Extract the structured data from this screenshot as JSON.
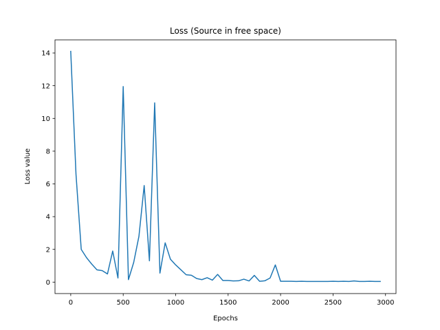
{
  "chart_data": {
    "type": "line",
    "title": "Loss (Source in free space)",
    "xlabel": "Epochs",
    "ylabel": "Loss value",
    "xlim": [
      -150,
      3100
    ],
    "ylim": [
      -0.7,
      14.8
    ],
    "xticks": [
      0,
      500,
      1000,
      1500,
      2000,
      2500,
      3000
    ],
    "yticks": [
      0,
      2,
      4,
      6,
      8,
      10,
      12,
      14
    ],
    "grid": false,
    "legend": "none",
    "series": [
      {
        "color": "#1f77b4",
        "x": [
          0,
          50,
          100,
          150,
          200,
          250,
          300,
          350,
          400,
          450,
          500,
          550,
          600,
          650,
          700,
          750,
          800,
          850,
          900,
          950,
          1000,
          1050,
          1100,
          1150,
          1200,
          1250,
          1300,
          1350,
          1400,
          1450,
          1500,
          1550,
          1600,
          1650,
          1700,
          1750,
          1800,
          1850,
          1900,
          1950,
          2000,
          2050,
          2100,
          2150,
          2200,
          2250,
          2300,
          2350,
          2400,
          2450,
          2500,
          2550,
          2600,
          2650,
          2700,
          2750,
          2800,
          2850,
          2900,
          2950
        ],
        "y": [
          14.1,
          6.6,
          2.0,
          1.5,
          1.1,
          0.75,
          0.7,
          0.5,
          1.9,
          0.25,
          11.95,
          0.15,
          1.2,
          2.8,
          5.9,
          1.3,
          10.95,
          0.55,
          2.4,
          1.4,
          1.05,
          0.75,
          0.45,
          0.42,
          0.22,
          0.15,
          0.27,
          0.12,
          0.47,
          0.1,
          0.1,
          0.07,
          0.08,
          0.18,
          0.07,
          0.41,
          0.05,
          0.08,
          0.25,
          1.05,
          0.05,
          0.05,
          0.05,
          0.04,
          0.05,
          0.04,
          0.04,
          0.04,
          0.04,
          0.04,
          0.05,
          0.04,
          0.05,
          0.04,
          0.07,
          0.04,
          0.04,
          0.05,
          0.04,
          0.04
        ]
      }
    ]
  }
}
